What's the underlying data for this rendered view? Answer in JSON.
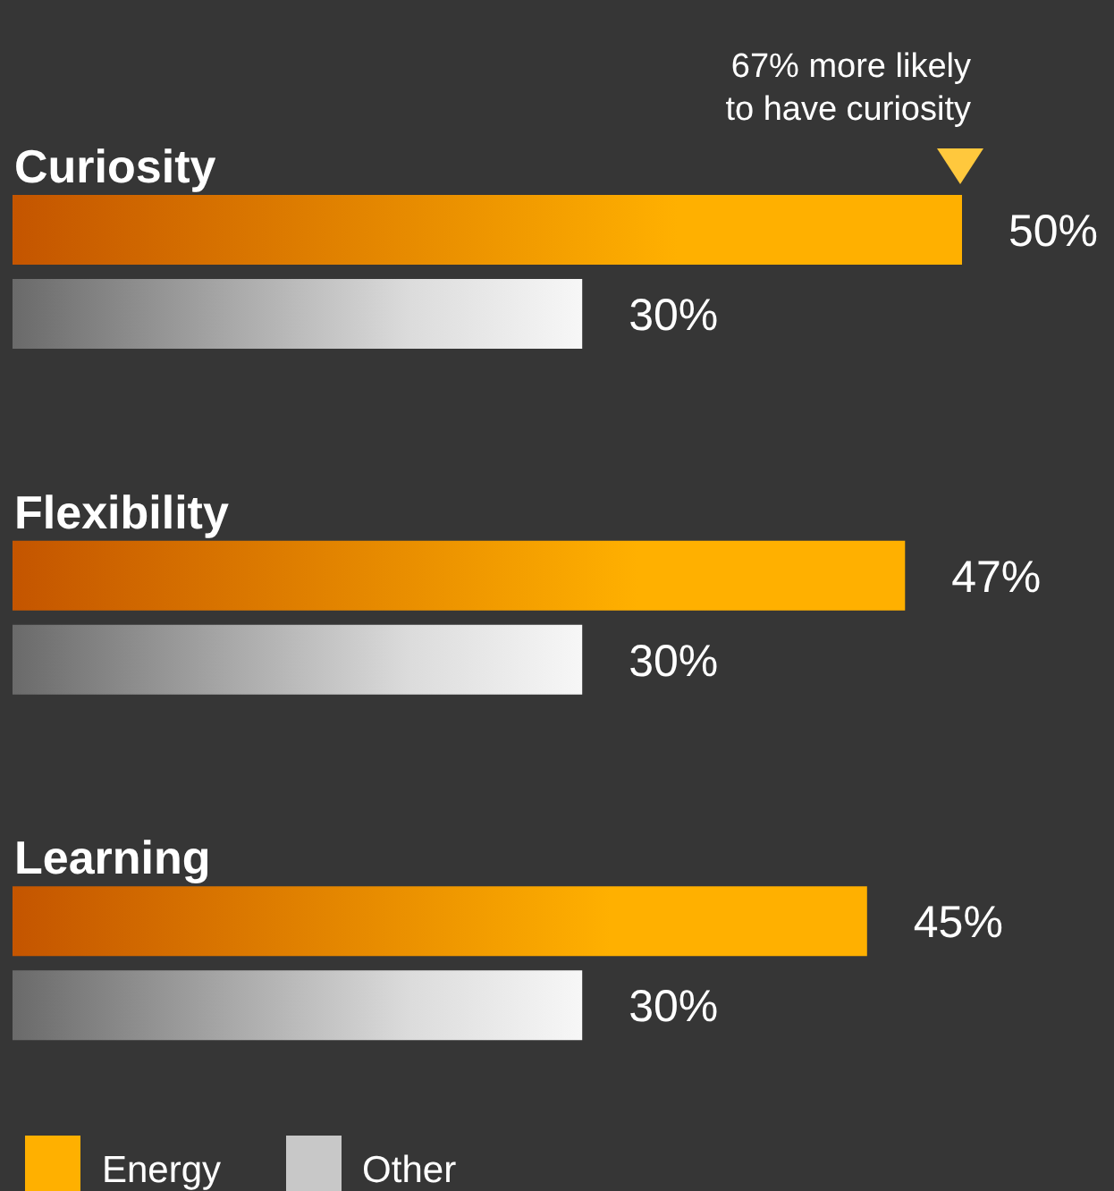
{
  "chart_data": {
    "type": "bar",
    "orientation": "horizontal",
    "categories": [
      "Curiosity",
      "Flexibility",
      "Learning"
    ],
    "series": [
      {
        "name": "Energy",
        "color": "#ffb000",
        "values": [
          50,
          47,
          45
        ],
        "value_labels": [
          "50%",
          "47%",
          "45%"
        ]
      },
      {
        "name": "Other",
        "color": "#c8c8c8",
        "values": [
          30,
          30,
          30
        ],
        "value_labels": [
          "30%",
          "30%",
          "30%"
        ]
      }
    ],
    "annotations": [
      "67% more likely\nto have curiosity"
    ],
    "legend": "bottom left"
  }
}
